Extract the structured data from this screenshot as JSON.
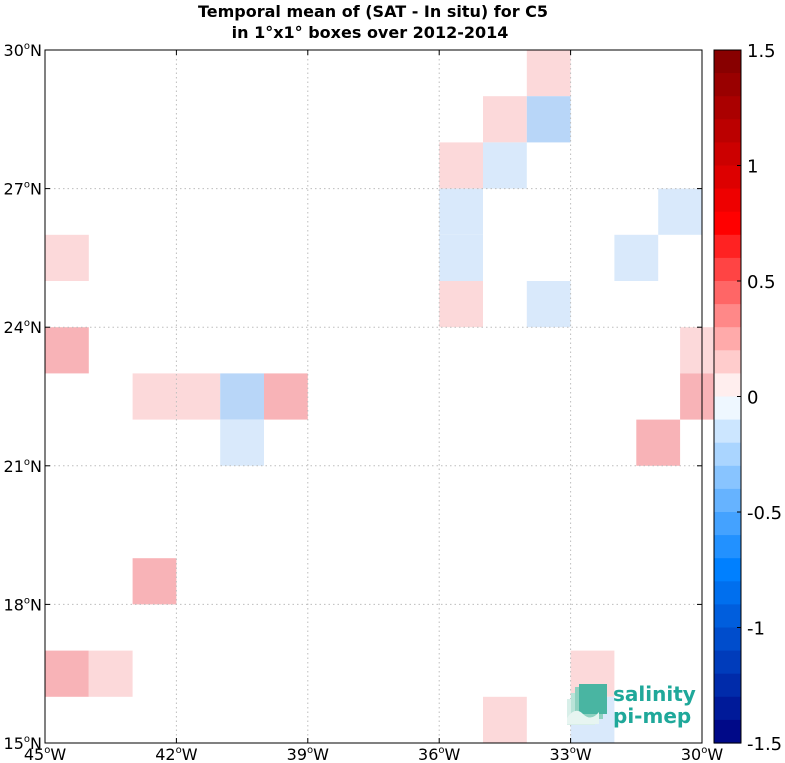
{
  "chart_data": {
    "type": "heatmap",
    "title_lines": [
      "Temporal mean of (SAT - In situ) for C5",
      "in 1°x1° boxes over 2012-2014"
    ],
    "x_ticks": [
      {
        "value": -45,
        "label": "45",
        "suffix": "W"
      },
      {
        "value": -42,
        "label": "42",
        "suffix": "W"
      },
      {
        "value": -39,
        "label": "39",
        "suffix": "W"
      },
      {
        "value": -36,
        "label": "36",
        "suffix": "W"
      },
      {
        "value": -33,
        "label": "33",
        "suffix": "W"
      },
      {
        "value": -30,
        "label": "30",
        "suffix": "W"
      }
    ],
    "y_ticks": [
      {
        "value": 15,
        "label": "15",
        "suffix": "N"
      },
      {
        "value": 18,
        "label": "18",
        "suffix": "N"
      },
      {
        "value": 21,
        "label": "21",
        "suffix": "N"
      },
      {
        "value": 24,
        "label": "24",
        "suffix": "N"
      },
      {
        "value": 27,
        "label": "27",
        "suffix": "N"
      },
      {
        "value": 30,
        "label": "30",
        "suffix": "N"
      }
    ],
    "xlim": [
      -45,
      -30
    ],
    "ylim": [
      15,
      30
    ],
    "grid": true,
    "colorbar": {
      "range": [
        -1.5,
        1.5
      ],
      "levels": 30,
      "ticks": [
        {
          "value": 1.5,
          "label": "1.5"
        },
        {
          "value": 1,
          "label": "1"
        },
        {
          "value": 0.5,
          "label": "0.5"
        },
        {
          "value": 0,
          "label": "0"
        },
        {
          "value": -0.5,
          "label": "-0.5"
        },
        {
          "value": -1,
          "label": "-1"
        },
        {
          "value": -1.5,
          "label": "-1.5"
        }
      ]
    },
    "cells": [
      {
        "lon": -34,
        "lat": 29,
        "value": 0.15
      },
      {
        "lon": -35,
        "lat": 28,
        "value": 0.15
      },
      {
        "lon": -34,
        "lat": 28,
        "value": -0.25
      },
      {
        "lon": -36,
        "lat": 27,
        "value": 0.15
      },
      {
        "lon": -35,
        "lat": 27,
        "value": -0.15
      },
      {
        "lon": -36,
        "lat": 26,
        "value": -0.15
      },
      {
        "lon": -31,
        "lat": 26,
        "value": -0.15
      },
      {
        "lon": -36,
        "lat": 25,
        "value": -0.15
      },
      {
        "lon": -32,
        "lat": 25,
        "value": -0.15
      },
      {
        "lon": -45,
        "lat": 25,
        "value": 0.15
      },
      {
        "lon": -36,
        "lat": 24,
        "value": 0.15
      },
      {
        "lon": -34,
        "lat": 24,
        "value": -0.15
      },
      {
        "lon": -45,
        "lat": 23,
        "value": 0.25
      },
      {
        "lon": -30.5,
        "lat": 23,
        "value": 0.15
      },
      {
        "lon": -43,
        "lat": 22,
        "value": 0.15
      },
      {
        "lon": -42,
        "lat": 22,
        "value": 0.15
      },
      {
        "lon": -41,
        "lat": 22,
        "value": -0.25
      },
      {
        "lon": -40,
        "lat": 22,
        "value": 0.25
      },
      {
        "lon": -30.5,
        "lat": 22,
        "value": 0.25
      },
      {
        "lon": -41,
        "lat": 21,
        "value": -0.15
      },
      {
        "lon": -31.5,
        "lat": 21,
        "value": 0.25
      },
      {
        "lon": -43,
        "lat": 18,
        "value": 0.25
      },
      {
        "lon": -45,
        "lat": 16,
        "value": 0.25
      },
      {
        "lon": -44,
        "lat": 16,
        "value": 0.15
      },
      {
        "lon": -33,
        "lat": 16,
        "value": 0.15
      },
      {
        "lon": -35,
        "lat": 15,
        "value": 0.15
      },
      {
        "lon": -33,
        "lat": 15,
        "value": -0.15
      }
    ]
  },
  "logo": {
    "line1": "salinity",
    "line2": "pi-mep"
  }
}
